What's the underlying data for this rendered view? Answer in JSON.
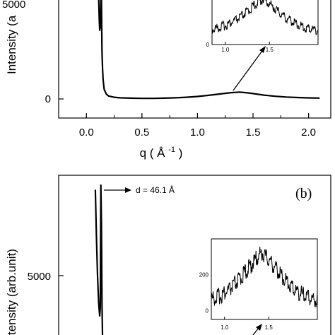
{
  "chart_data": [
    {
      "type": "line",
      "panel": "a",
      "title": "",
      "xlabel": "q ( Å",
      "xlabel_sup": "-1",
      "xlabel_end": ")",
      "ylabel": "Intensity (a",
      "ylabel_top_tick": "5000",
      "xlim": [
        -0.25,
        2.2
      ],
      "ylim": [
        -500,
        7000
      ],
      "x_ticks": [
        "0.0",
        "0.5",
        "1.0",
        "1.5",
        "2.0"
      ],
      "y_ticks": [
        "0"
      ],
      "series": [
        {
          "x": [
            0.105,
            0.11,
            0.115,
            0.12,
            0.125,
            0.13,
            0.135,
            0.14,
            0.145,
            0.15,
            0.16,
            0.18,
            0.2,
            0.25,
            0.3,
            0.4,
            0.5,
            0.6,
            0.7,
            0.8,
            0.9,
            1.0,
            1.1,
            1.2,
            1.3,
            1.38,
            1.45,
            1.5,
            1.6,
            1.7,
            1.8,
            1.9,
            2.0,
            2.1
          ],
          "y": [
            9000,
            6000,
            4200,
            3600,
            3800,
            9000,
            6000,
            2500,
            1600,
            1000,
            500,
            250,
            150,
            90,
            60,
            40,
            30,
            30,
            40,
            60,
            90,
            130,
            190,
            260,
            330,
            360,
            320,
            280,
            200,
            140,
            100,
            75,
            55,
            45
          ]
        }
      ],
      "inset": {
        "x_ticks": [
          "1.0",
          "1.5"
        ],
        "y_ticks": [
          "0"
        ],
        "xlim": [
          0.85,
          2.05
        ],
        "ylim": [
          0,
          400
        ],
        "x": [
          0.85,
          0.95,
          1.05,
          1.15,
          1.25,
          1.35,
          1.42,
          1.5,
          1.6,
          1.7,
          1.8,
          1.9,
          2.0,
          2.05
        ],
        "y": [
          110,
          130,
          160,
          200,
          260,
          330,
          370,
          330,
          260,
          200,
          160,
          120,
          110,
          105
        ]
      }
    },
    {
      "type": "line",
      "panel": "b",
      "panel_label": "(b)",
      "title": "",
      "annotation": "d = 46.1 Å",
      "ylabel": "tensity (arb.unit)",
      "xlim": [
        -0.25,
        2.2
      ],
      "ylim": [
        -500,
        9400
      ],
      "y_ticks": [
        "5000"
      ],
      "series": [
        {
          "x": [
            0.08,
            0.09,
            0.1,
            0.11,
            0.115,
            0.12,
            0.125,
            0.13,
            0.135,
            0.14,
            0.145,
            0.15
          ],
          "y": [
            8200,
            6500,
            5000,
            4000,
            3700,
            3500,
            3800,
            9000,
            7000,
            4000,
            2000,
            1000
          ]
        }
      ],
      "inset": {
        "x_ticks": [
          "1.0",
          "1.5"
        ],
        "y_ticks": [
          "200",
          "0"
        ],
        "xlim": [
          0.85,
          2.05
        ],
        "ylim": [
          -50,
          400
        ],
        "x": [
          0.85,
          0.95,
          1.05,
          1.15,
          1.25,
          1.35,
          1.42,
          1.5,
          1.6,
          1.7,
          1.8,
          1.9,
          2.0,
          2.05
        ],
        "y": [
          40,
          60,
          90,
          140,
          200,
          260,
          300,
          260,
          200,
          140,
          90,
          60,
          40,
          35
        ]
      }
    }
  ]
}
